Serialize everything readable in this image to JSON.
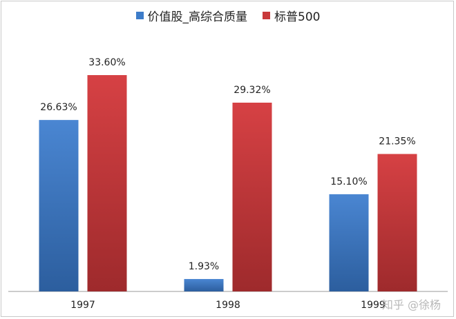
{
  "chart_data": {
    "type": "bar",
    "categories": [
      "1997",
      "1998",
      "1999"
    ],
    "series": [
      {
        "name": "价值股_高综合质量",
        "values": [
          26.63,
          1.93,
          15.1
        ],
        "labels": [
          "26.63%",
          "1.93%",
          "15.10%"
        ],
        "color": "#3d7cc9"
      },
      {
        "name": "标普500",
        "values": [
          33.6,
          29.32,
          21.35
        ],
        "labels": [
          "33.60%",
          "29.32%",
          "21.35%"
        ],
        "color": "#c8393b"
      }
    ],
    "ylim": [
      0,
      36
    ],
    "grid": false,
    "legend_position": "top-center"
  },
  "watermark": "知乎 @徐杨"
}
